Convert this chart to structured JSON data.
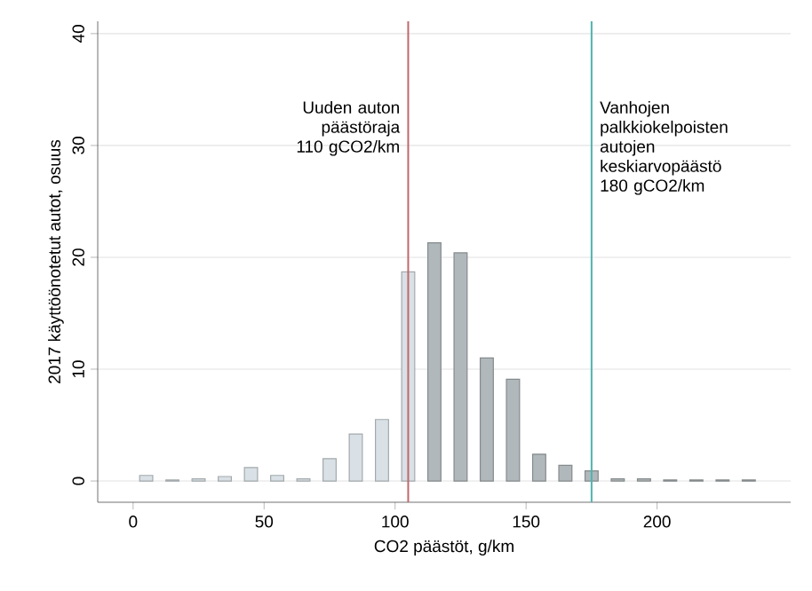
{
  "chart_data": {
    "type": "histogram",
    "xlabel": "CO2 päästöt, g/km",
    "ylabel": "2017 käyttöönotetut autot, osuus",
    "bins": [
      0,
      10,
      20,
      30,
      40,
      50,
      60,
      70,
      80,
      90,
      100,
      110,
      120,
      130,
      140,
      150,
      160,
      170,
      180,
      190,
      200,
      210,
      220,
      230,
      240
    ],
    "values": [
      0.5,
      0.1,
      0.2,
      0.4,
      1.2,
      0.5,
      0.2,
      2.0,
      4.2,
      5.5,
      18.7,
      21.3,
      20.4,
      11.0,
      9.1,
      2.4,
      1.4,
      0.9,
      0.2,
      0.2,
      0.1,
      0.1,
      0.1,
      0.1
    ],
    "colors": [
      "#d9e1e6",
      "#d9e1e6",
      "#d9e1e6",
      "#d9e1e6",
      "#d9e1e6",
      "#d9e1e6",
      "#d9e1e6",
      "#d9e1e6",
      "#d9e1e6",
      "#d9e1e6",
      "#d9e1e6",
      "#b1b8bb",
      "#b1b8bb",
      "#b1b8bb",
      "#b1b8bb",
      "#b1b8bb",
      "#b1b8bb",
      "#b1b8bb",
      "#b1b8bb",
      "#b1b8bb",
      "#b1b8bb",
      "#b1b8bb",
      "#b1b8bb",
      "#b1b8bb"
    ],
    "xlim": [
      -13.5,
      251
    ],
    "ylim": [
      -1.9,
      41.1
    ],
    "xticks": [
      0,
      50,
      100,
      150,
      200
    ],
    "yticks": [
      0,
      10,
      20,
      30,
      40
    ],
    "grid": "y",
    "ref_lines": [
      {
        "axis": "x",
        "value": 105,
        "label": "Uuden auton päästöraja 110 gCO2/km",
        "color": "#c0696c"
      },
      {
        "axis": "x",
        "value": 175,
        "label": "Vanhojen palkkiokelpoisten autojen keskiarvopäästö 180 gCO2/km",
        "color": "#4fb3ae"
      }
    ]
  }
}
